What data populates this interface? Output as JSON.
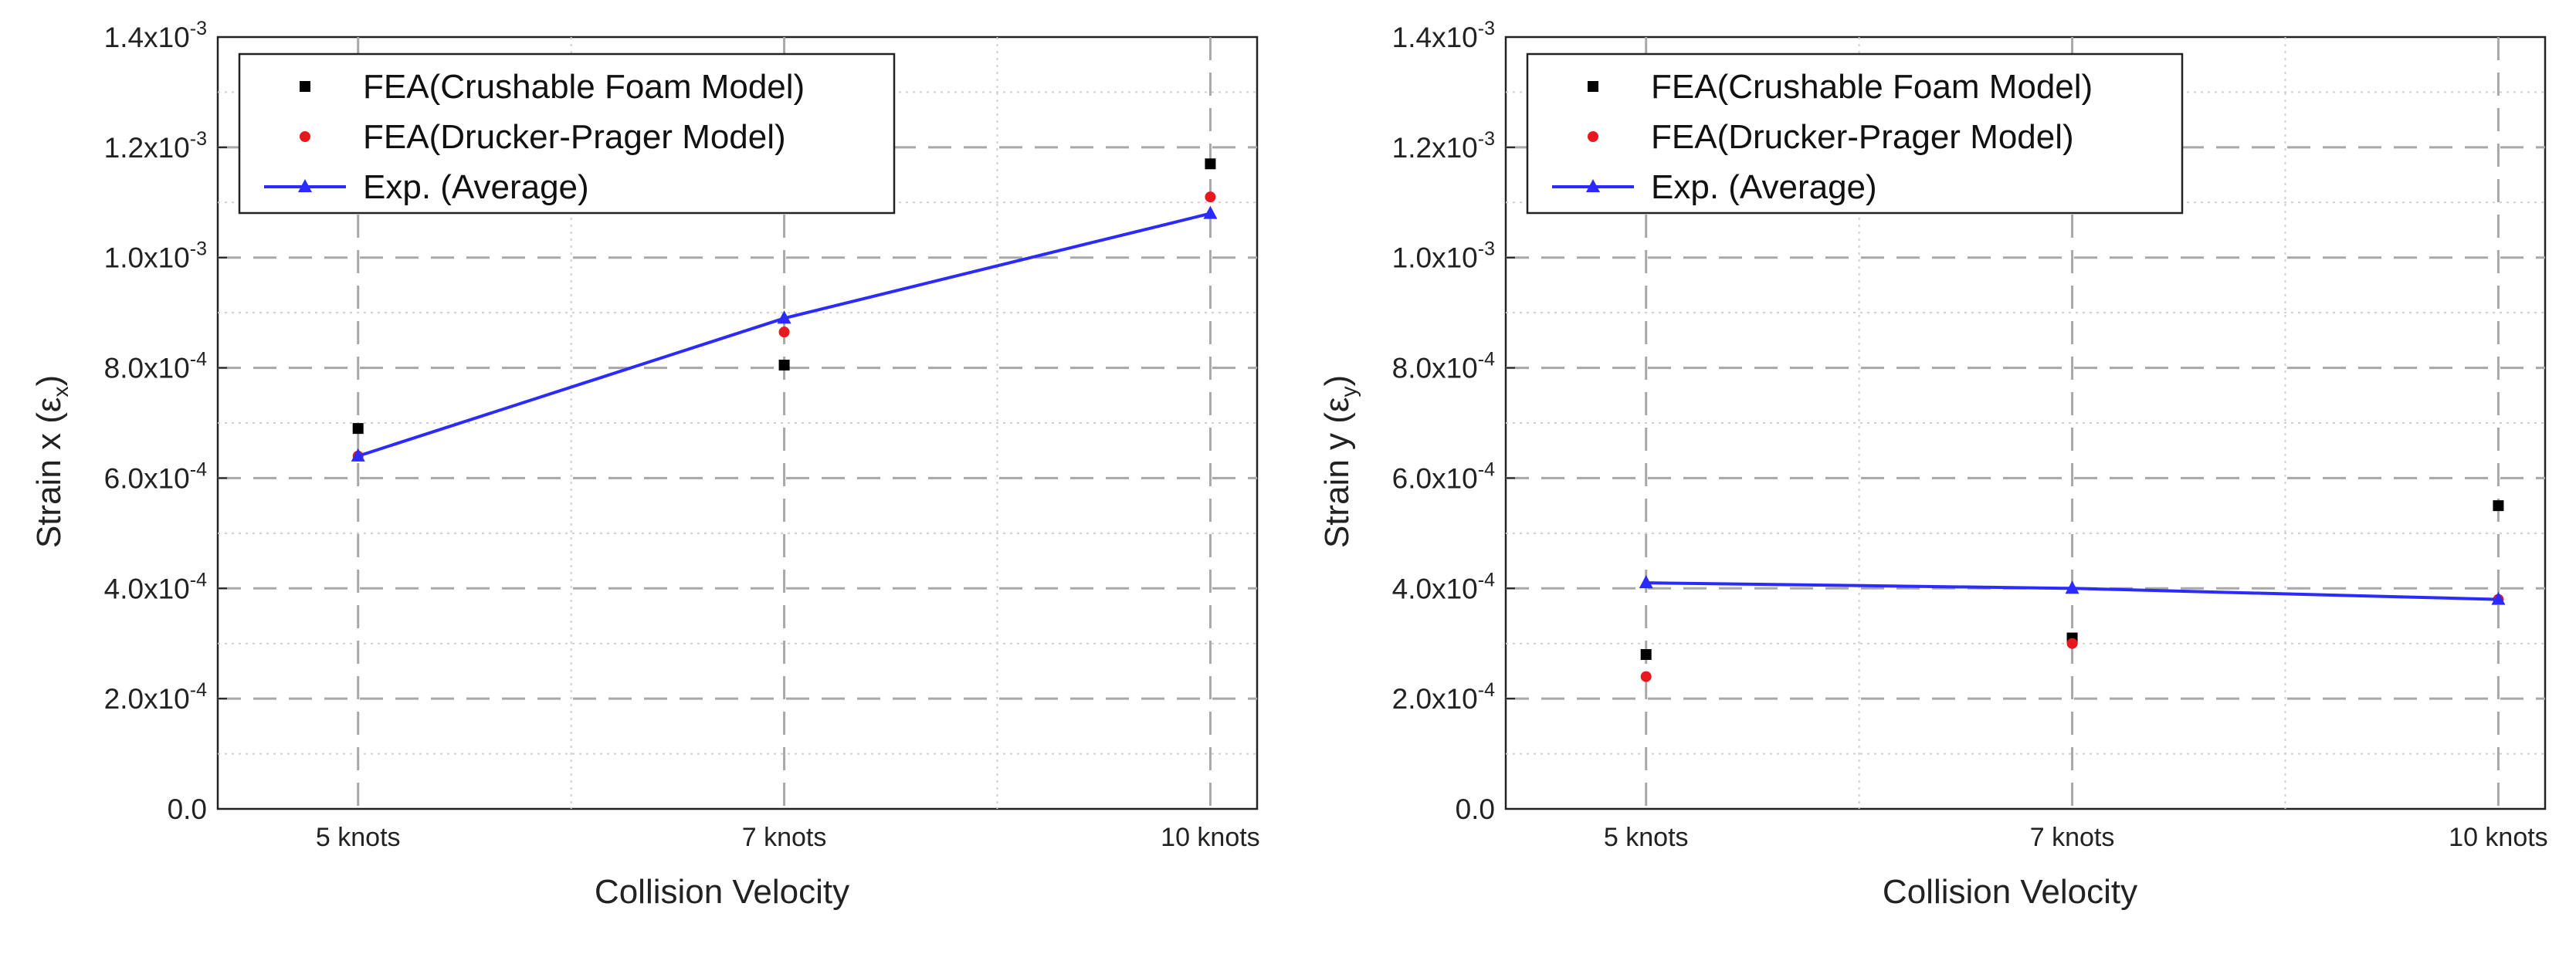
{
  "chart_data": [
    {
      "type": "scatter",
      "title": "",
      "xlabel": "Collision Velocity",
      "ylabel": "Strain x (",
      "ylabel_symbol": "ε",
      "ylabel_sub": "x",
      "ylabel_close": ")",
      "categories": [
        "5 knots",
        "7 knots",
        "10 knots"
      ],
      "ylim": [
        0,
        0.0014
      ],
      "yticks": [
        {
          "value": 0,
          "mant": "0.0",
          "exp": ""
        },
        {
          "value": 0.0002,
          "mant": "2.0x10",
          "exp": "-4"
        },
        {
          "value": 0.0004,
          "mant": "4.0x10",
          "exp": "-4"
        },
        {
          "value": 0.0006,
          "mant": "6.0x10",
          "exp": "-4"
        },
        {
          "value": 0.0008,
          "mant": "8.0x10",
          "exp": "-4"
        },
        {
          "value": 0.001,
          "mant": "1.0x10",
          "exp": "-3"
        },
        {
          "value": 0.0012,
          "mant": "1.2x10",
          "exp": "-3"
        },
        {
          "value": 0.0014,
          "mant": "1.4x10",
          "exp": "-3"
        }
      ],
      "grid": true,
      "legend_position": "top-left",
      "series": [
        {
          "name": "FEA(Crushable Foam Model)",
          "marker": "square",
          "line": false,
          "color": "#000000",
          "values": [
            0.00069,
            0.000805,
            0.00117
          ]
        },
        {
          "name": "FEA(Drucker-Prager Model)",
          "marker": "dot",
          "line": false,
          "color": "#e8191e",
          "values": [
            0.00064,
            0.000865,
            0.00111
          ]
        },
        {
          "name": "Exp. (Average)",
          "marker": "triangle",
          "line": true,
          "color": "#2b2bff",
          "values": [
            0.00064,
            0.00089,
            0.00108
          ]
        }
      ]
    },
    {
      "type": "scatter",
      "title": "",
      "xlabel": "Collision Velocity",
      "ylabel": "Strain y (",
      "ylabel_symbol": "ε",
      "ylabel_sub": "y",
      "ylabel_close": ")",
      "categories": [
        "5 knots",
        "7 knots",
        "10 knots"
      ],
      "ylim": [
        0,
        0.0014
      ],
      "yticks": [
        {
          "value": 0,
          "mant": "0.0",
          "exp": ""
        },
        {
          "value": 0.0002,
          "mant": "2.0x10",
          "exp": "-4"
        },
        {
          "value": 0.0004,
          "mant": "4.0x10",
          "exp": "-4"
        },
        {
          "value": 0.0006,
          "mant": "6.0x10",
          "exp": "-4"
        },
        {
          "value": 0.0008,
          "mant": "8.0x10",
          "exp": "-4"
        },
        {
          "value": 0.001,
          "mant": "1.0x10",
          "exp": "-3"
        },
        {
          "value": 0.0012,
          "mant": "1.2x10",
          "exp": "-3"
        },
        {
          "value": 0.0014,
          "mant": "1.4x10",
          "exp": "-3"
        }
      ],
      "grid": true,
      "legend_position": "top-left",
      "series": [
        {
          "name": "FEA(Crushable Foam Model)",
          "marker": "square",
          "line": false,
          "color": "#000000",
          "values": [
            0.00028,
            0.00031,
            0.00055
          ]
        },
        {
          "name": "FEA(Drucker-Prager Model)",
          "marker": "dot",
          "line": false,
          "color": "#e8191e",
          "values": [
            0.00024,
            0.0003,
            0.00038
          ]
        },
        {
          "name": "Exp. (Average)",
          "marker": "triangle",
          "line": true,
          "color": "#2b2bff",
          "values": [
            0.00041,
            0.0004,
            0.00038
          ]
        }
      ]
    }
  ]
}
